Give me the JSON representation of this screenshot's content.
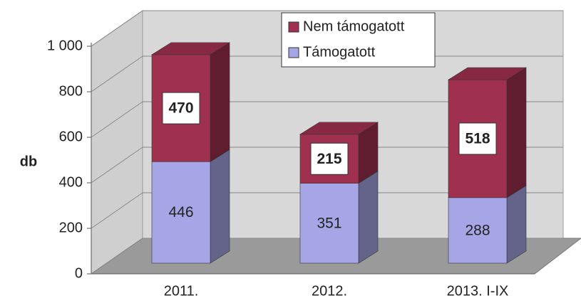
{
  "chart_data": {
    "type": "bar",
    "stacked": true,
    "y_label": "db",
    "categories": [
      "2011.",
      "2012.",
      "2013. I-IX"
    ],
    "series": [
      {
        "name": "Támogatott",
        "color": "#a6a6e6",
        "values": [
          446,
          351,
          288
        ]
      },
      {
        "name": "Nem támogatott",
        "color": "#a03050",
        "values": [
          470,
          215,
          518
        ]
      }
    ],
    "ylim": [
      0,
      1000
    ],
    "yticks": [
      0,
      200,
      400,
      600,
      800,
      {
        "value": 1000,
        "label": "1 000"
      }
    ],
    "grid": true,
    "legend": "top"
  }
}
